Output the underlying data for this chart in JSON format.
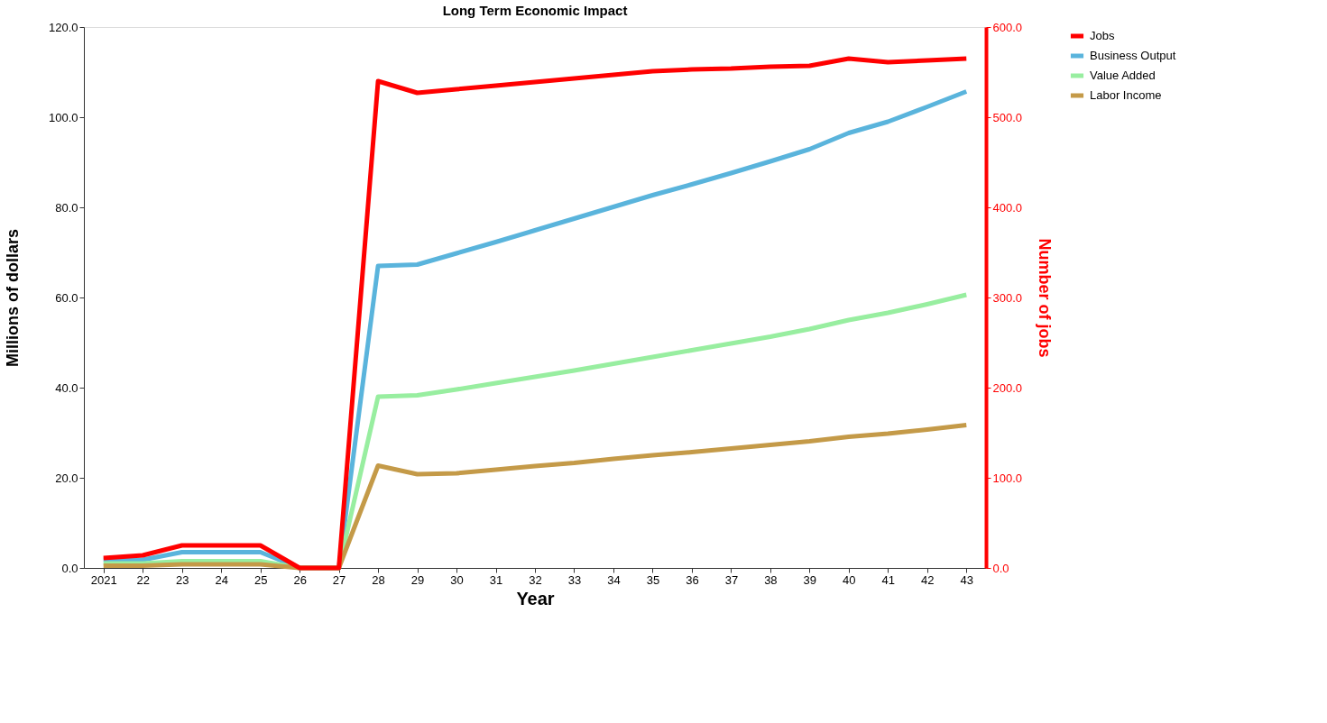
{
  "chart_data": {
    "type": "line",
    "title": "Long Term Economic Impact",
    "xlabel": "Year",
    "ylabel": "Millions of dollars",
    "y2label": "Number of jobs",
    "categories": [
      "2021",
      "22",
      "23",
      "24",
      "25",
      "26",
      "27",
      "28",
      "29",
      "30",
      "31",
      "32",
      "33",
      "34",
      "35",
      "36",
      "37",
      "38",
      "39",
      "40",
      "41",
      "42",
      "43"
    ],
    "series": [
      {
        "name": "Jobs",
        "color": "#ff0000",
        "axis": "y2",
        "values": [
          11,
          14,
          25,
          25,
          25,
          0,
          0,
          540,
          527,
          531,
          535,
          539,
          543,
          547,
          551,
          553,
          554,
          556,
          557,
          565,
          561,
          563,
          565
        ]
      },
      {
        "name": "Business Output",
        "color": "#5ab4dc",
        "values": [
          1.8,
          1.8,
          3.5,
          3.5,
          3.5,
          0,
          0,
          67,
          67.3,
          69.8,
          72.3,
          74.9,
          77.5,
          80.1,
          82.7,
          85.1,
          87.6,
          90.2,
          92.9,
          96.5,
          99,
          102.3,
          105.7
        ]
      },
      {
        "name": "Value Added",
        "color": "#98eea0",
        "values": [
          1,
          1,
          1.5,
          1.5,
          1.5,
          0,
          0,
          38,
          38.3,
          39.6,
          41,
          42.4,
          43.8,
          45.3,
          46.8,
          48.3,
          49.8,
          51.3,
          53,
          55,
          56.6,
          58.5,
          60.6
        ]
      },
      {
        "name": "Labor Income",
        "color": "#c49a48",
        "values": [
          0.5,
          0.5,
          0.8,
          0.8,
          0.8,
          0,
          0,
          22.7,
          20.8,
          21,
          21.8,
          22.6,
          23.3,
          24.2,
          25,
          25.7,
          26.5,
          27.3,
          28.1,
          29.1,
          29.8,
          30.7,
          31.7
        ]
      }
    ],
    "ylim": [
      0,
      120
    ],
    "yticks": [
      {
        "value": 0,
        "label": "0.0"
      },
      {
        "value": 20,
        "label": "20.0"
      },
      {
        "value": 40,
        "label": "40.0"
      },
      {
        "value": 60,
        "label": "60.0"
      },
      {
        "value": 80,
        "label": "80.0"
      },
      {
        "value": 100,
        "label": "100.0"
      },
      {
        "value": 120,
        "label": "120.0"
      }
    ],
    "y2lim": [
      0,
      600
    ],
    "y2ticks": [
      {
        "value": 0,
        "label": "0.0"
      },
      {
        "value": 100,
        "label": "100.0"
      },
      {
        "value": 200,
        "label": "200.0"
      },
      {
        "value": 300,
        "label": "300.0"
      },
      {
        "value": 400,
        "label": "400.0"
      },
      {
        "value": 500,
        "label": "500.0"
      },
      {
        "value": 600,
        "label": "600.0"
      }
    ],
    "legend": "right",
    "grid": false,
    "marker": "none",
    "line_style": "solid"
  }
}
